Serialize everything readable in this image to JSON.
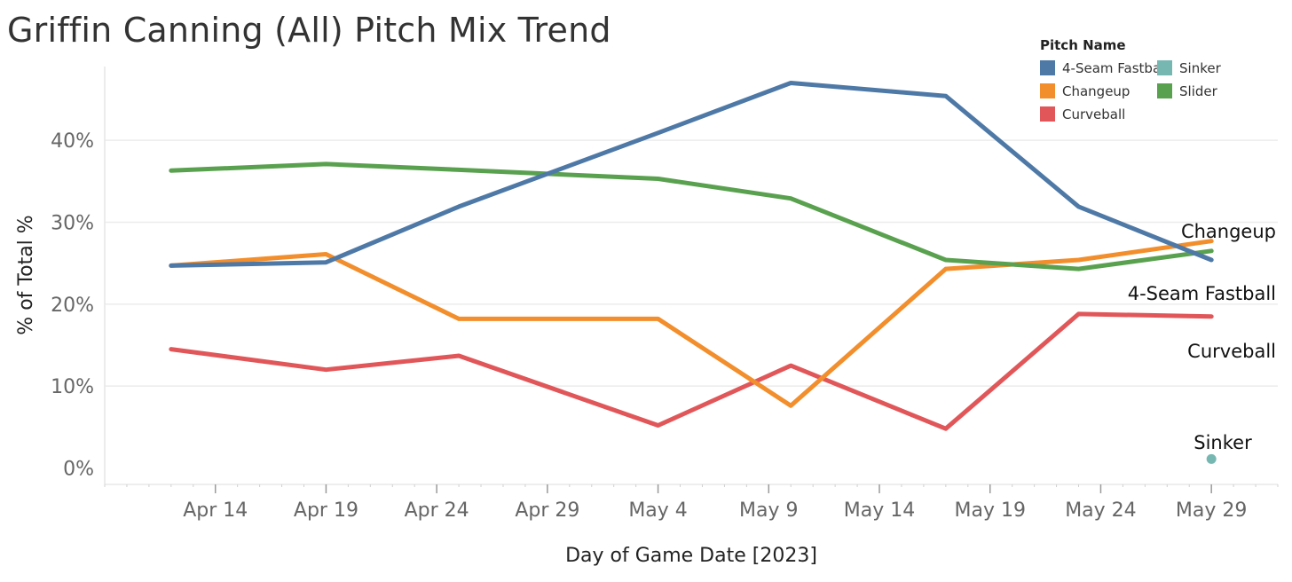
{
  "chart_data": {
    "type": "line",
    "title": "Griffin Canning (All) Pitch Mix Trend",
    "xlabel": "Day of Game Date [2023]",
    "ylabel": "% of Total %",
    "x_range": [
      "2023-04-09",
      "2023-06-01"
    ],
    "x_ticks": [
      {
        "date": "2023-04-14",
        "label": "Apr 14"
      },
      {
        "date": "2023-04-19",
        "label": "Apr 19"
      },
      {
        "date": "2023-04-24",
        "label": "Apr 24"
      },
      {
        "date": "2023-04-29",
        "label": "Apr 29"
      },
      {
        "date": "2023-05-04",
        "label": "May 4"
      },
      {
        "date": "2023-05-09",
        "label": "May 9"
      },
      {
        "date": "2023-05-14",
        "label": "May 14"
      },
      {
        "date": "2023-05-19",
        "label": "May 19"
      },
      {
        "date": "2023-05-24",
        "label": "May 24"
      },
      {
        "date": "2023-05-29",
        "label": "May 29"
      }
    ],
    "ylim": [
      -2,
      49
    ],
    "y_ticks": [
      {
        "value": 0,
        "label": "0%"
      },
      {
        "value": 10,
        "label": "10%"
      },
      {
        "value": 20,
        "label": "20%"
      },
      {
        "value": 30,
        "label": "30%"
      },
      {
        "value": 40,
        "label": "40%"
      }
    ],
    "grid": "horizontal",
    "legend": {
      "title": "Pitch Name",
      "placement": "top-right",
      "items": [
        "4-Seam Fastball",
        "Sinker",
        "Changeup",
        "Slider",
        "Curveball"
      ]
    },
    "series": [
      {
        "name": "4-Seam Fastball",
        "color": "#4e79a7",
        "points": [
          [
            "2023-04-12",
            24.7
          ],
          [
            "2023-04-19",
            25.1
          ],
          [
            "2023-04-25",
            31.9
          ],
          [
            "2023-05-04",
            40.9
          ],
          [
            "2023-05-10",
            47.0
          ],
          [
            "2023-05-17",
            45.4
          ],
          [
            "2023-05-23",
            31.9
          ],
          [
            "2023-05-29",
            25.4
          ]
        ],
        "end_label": "4-Seam Fastball"
      },
      {
        "name": "Changeup",
        "color": "#f28e2b",
        "points": [
          [
            "2023-04-12",
            24.7
          ],
          [
            "2023-04-19",
            26.1
          ],
          [
            "2023-04-25",
            18.2
          ],
          [
            "2023-05-04",
            18.2
          ],
          [
            "2023-05-10",
            7.6
          ],
          [
            "2023-05-17",
            24.3
          ],
          [
            "2023-05-23",
            25.4
          ],
          [
            "2023-05-29",
            27.7
          ]
        ],
        "end_label": "Changeup"
      },
      {
        "name": "Slider",
        "color": "#59a14f",
        "points": [
          [
            "2023-04-12",
            36.3
          ],
          [
            "2023-04-19",
            37.1
          ],
          [
            "2023-04-25",
            36.4
          ],
          [
            "2023-05-04",
            35.3
          ],
          [
            "2023-05-10",
            32.9
          ],
          [
            "2023-05-17",
            25.4
          ],
          [
            "2023-05-23",
            24.3
          ],
          [
            "2023-05-29",
            26.5
          ]
        ],
        "end_label": ""
      },
      {
        "name": "Curveball",
        "color": "#e15759",
        "points": [
          [
            "2023-04-12",
            14.5
          ],
          [
            "2023-04-19",
            12.0
          ],
          [
            "2023-04-25",
            13.7
          ],
          [
            "2023-05-04",
            5.2
          ],
          [
            "2023-05-10",
            12.5
          ],
          [
            "2023-05-17",
            4.8
          ],
          [
            "2023-05-23",
            18.8
          ],
          [
            "2023-05-29",
            18.5
          ]
        ],
        "end_label": "Curveball"
      },
      {
        "name": "Sinker",
        "color": "#76b7b2",
        "points": [
          [
            "2023-05-29",
            1.1
          ]
        ],
        "end_label": "Sinker"
      }
    ]
  }
}
